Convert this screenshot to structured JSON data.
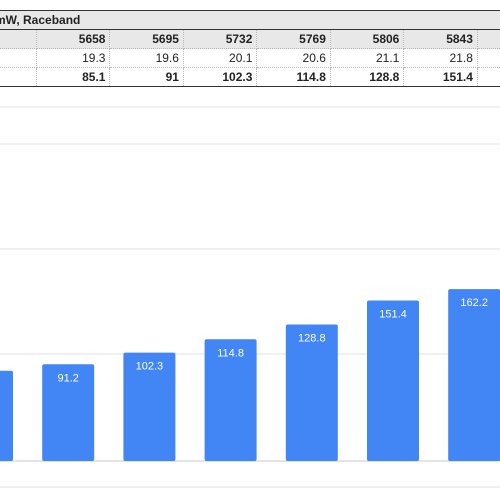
{
  "table": {
    "title": "mW, Raceband",
    "columns": [
      "5658",
      "5695",
      "5732",
      "5769",
      "5806",
      "5843"
    ],
    "rows": [
      {
        "style": "normal",
        "values": [
          "19.3",
          "19.6",
          "20.1",
          "20.6",
          "21.1",
          "21.8"
        ]
      },
      {
        "style": "bold",
        "values": [
          "85.1",
          "91",
          "102.3",
          "114.8",
          "128.8",
          "151.4"
        ]
      }
    ]
  },
  "chart_data": {
    "type": "bar",
    "values": [
      85.1,
      91.2,
      102.3,
      114.8,
      128.8,
      151.4,
      162.2
    ],
    "labels": [
      "",
      "91.2",
      "102.3",
      "114.8",
      "128.8",
      "151.4",
      "162.2"
    ],
    "color": "#4285f4",
    "grid": true
  }
}
